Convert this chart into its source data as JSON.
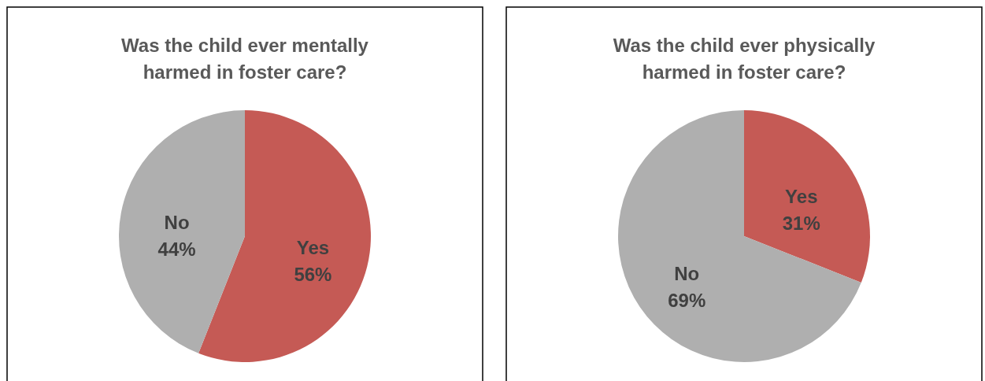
{
  "chart_data": [
    {
      "type": "pie",
      "title": "Was the child ever mentally harmed in foster care?",
      "categories": [
        "Yes",
        "No"
      ],
      "values": [
        56,
        44
      ],
      "colors": [
        "#c55a55",
        "#afafaf"
      ],
      "value_labels": [
        "56%",
        "44%"
      ]
    },
    {
      "type": "pie",
      "title": "Was the child ever physically harmed in foster care?",
      "categories": [
        "Yes",
        "No"
      ],
      "values": [
        31,
        69
      ],
      "colors": [
        "#c55a55",
        "#afafaf"
      ],
      "value_labels": [
        "31%",
        "69%"
      ]
    }
  ]
}
